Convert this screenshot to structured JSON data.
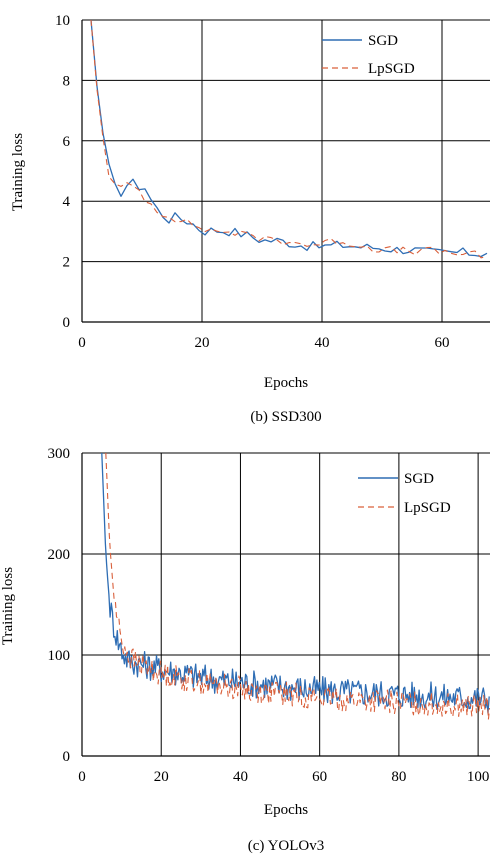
{
  "chart_data": [
    {
      "type": "line",
      "caption": "(b) SSD300",
      "xlabel": "Epochs",
      "ylabel": "Training loss",
      "xlim": [
        0,
        68
      ],
      "ylim": [
        0,
        10
      ],
      "xticks": [
        0,
        20,
        40,
        60
      ],
      "yticks": [
        0,
        2,
        4,
        6,
        8,
        10
      ],
      "grid": true,
      "legend_position": "top-right",
      "series": [
        {
          "name": "SGD",
          "color": "#2E6DB4",
          "style": "solid",
          "keypoints": [
            [
              1.5,
              10
            ],
            [
              2,
              8.6
            ],
            [
              3,
              7.0
            ],
            [
              4,
              5.5
            ],
            [
              5,
              4.7
            ],
            [
              6,
              4.2
            ],
            [
              7,
              4.4
            ],
            [
              8,
              4.7
            ],
            [
              9,
              4.5
            ],
            [
              10,
              4.5
            ],
            [
              11,
              4.4
            ],
            [
              12,
              3.7
            ],
            [
              13,
              3.8
            ],
            [
              14,
              3.3
            ],
            [
              15,
              3.5
            ],
            [
              17,
              3.4
            ],
            [
              19,
              3.2
            ],
            [
              20,
              3.0
            ],
            [
              22,
              3.05
            ],
            [
              25,
              3.0
            ],
            [
              28,
              2.85
            ],
            [
              30,
              2.7
            ],
            [
              33,
              2.7
            ],
            [
              35,
              2.6
            ],
            [
              38,
              2.5
            ],
            [
              40,
              2.5
            ],
            [
              43,
              2.55
            ],
            [
              46,
              2.5
            ],
            [
              50,
              2.45
            ],
            [
              53,
              2.4
            ],
            [
              55,
              2.4
            ],
            [
              58,
              2.3
            ],
            [
              60,
              2.3
            ],
            [
              62,
              2.3
            ],
            [
              64,
              2.3
            ],
            [
              66,
              2.25
            ],
            [
              68,
              2.35
            ]
          ]
        },
        {
          "name": "LpSGD",
          "color": "#D9603B",
          "style": "dashed",
          "keypoints": [
            [
              1.5,
              10
            ],
            [
              2,
              8.4
            ],
            [
              3,
              7.0
            ],
            [
              4,
              5.2
            ],
            [
              5,
              4.6
            ],
            [
              6,
              4.4
            ],
            [
              7,
              4.5
            ],
            [
              8,
              4.5
            ],
            [
              9,
              4.5
            ],
            [
              10,
              4.2
            ],
            [
              11,
              4.0
            ],
            [
              12,
              3.8
            ],
            [
              13,
              3.6
            ],
            [
              14,
              3.6
            ],
            [
              15,
              3.5
            ],
            [
              17,
              3.3
            ],
            [
              19,
              3.2
            ],
            [
              20,
              3.1
            ],
            [
              22,
              3.0
            ],
            [
              25,
              3.0
            ],
            [
              28,
              2.8
            ],
            [
              30,
              2.8
            ],
            [
              33,
              2.7
            ],
            [
              35,
              2.65
            ],
            [
              38,
              2.55
            ],
            [
              40,
              2.6
            ],
            [
              43,
              2.7
            ],
            [
              46,
              2.55
            ],
            [
              50,
              2.4
            ],
            [
              53,
              2.35
            ],
            [
              55,
              2.35
            ],
            [
              58,
              2.35
            ],
            [
              60,
              2.3
            ],
            [
              62,
              2.3
            ],
            [
              64,
              2.25
            ],
            [
              66,
              2.2
            ],
            [
              68,
              2.15
            ]
          ]
        }
      ]
    },
    {
      "type": "line",
      "caption": "(c) YOLOv3",
      "xlabel": "Epochs",
      "ylabel": "Training loss",
      "xlim": [
        0,
        103
      ],
      "ylim": [
        0,
        300
      ],
      "xticks": [
        0,
        20,
        40,
        60,
        80,
        100
      ],
      "yticks": [
        0,
        100,
        200,
        300
      ],
      "grid": true,
      "legend_position": "top-right",
      "series": [
        {
          "name": "SGD",
          "color": "#2E6DB4",
          "style": "solid",
          "keypoints": [
            [
              5,
              300
            ],
            [
              6,
              200
            ],
            [
              7,
              150
            ],
            [
              8,
              130
            ],
            [
              9,
              115
            ],
            [
              10,
              105
            ],
            [
              11,
              98
            ],
            [
              12,
              94
            ],
            [
              14,
              92
            ],
            [
              16,
              90
            ],
            [
              20,
              86
            ],
            [
              25,
              82
            ],
            [
              30,
              78
            ],
            [
              35,
              75
            ],
            [
              40,
              73
            ],
            [
              45,
              71
            ],
            [
              50,
              69
            ],
            [
              55,
              67
            ],
            [
              60,
              65
            ],
            [
              65,
              64
            ],
            [
              70,
              63
            ],
            [
              75,
              62
            ],
            [
              80,
              61
            ],
            [
              85,
              60
            ],
            [
              90,
              59
            ],
            [
              95,
              58
            ],
            [
              100,
              57
            ],
            [
              103,
              56
            ]
          ]
        },
        {
          "name": "LpSGD",
          "color": "#D9603B",
          "style": "dashed",
          "keypoints": [
            [
              6,
              300
            ],
            [
              7,
              210
            ],
            [
              8,
              160
            ],
            [
              9,
              135
            ],
            [
              10,
              115
            ],
            [
              11,
              105
            ],
            [
              12,
              98
            ],
            [
              14,
              92
            ],
            [
              16,
              88
            ],
            [
              20,
              82
            ],
            [
              25,
              77
            ],
            [
              30,
              73
            ],
            [
              35,
              70
            ],
            [
              40,
              67
            ],
            [
              45,
              64
            ],
            [
              50,
              62
            ],
            [
              55,
              60
            ],
            [
              60,
              58
            ],
            [
              65,
              56
            ],
            [
              70,
              55
            ],
            [
              75,
              54
            ],
            [
              80,
              53
            ],
            [
              85,
              52
            ],
            [
              90,
              51
            ],
            [
              95,
              50
            ],
            [
              100,
              49
            ],
            [
              103,
              48
            ]
          ]
        }
      ]
    }
  ]
}
